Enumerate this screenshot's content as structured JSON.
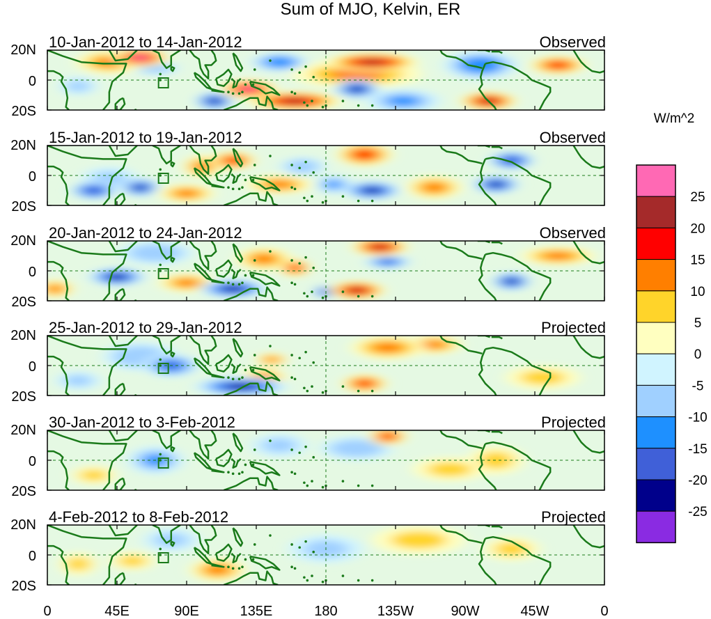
{
  "title": "Sum of MJO, Kelvin, ER",
  "panels": [
    {
      "date_range": "10-Jan-2012 to 14-Jan-2012",
      "status": "Observed"
    },
    {
      "date_range": "15-Jan-2012 to 19-Jan-2012",
      "status": "Observed"
    },
    {
      "date_range": "20-Jan-2012 to 24-Jan-2012",
      "status": "Observed"
    },
    {
      "date_range": "25-Jan-2012 to 29-Jan-2012",
      "status": "Projected"
    },
    {
      "date_range": "30-Jan-2012 to 3-Feb-2012",
      "status": "Projected"
    },
    {
      "date_range": "4-Feb-2012 to 8-Feb-2012",
      "status": "Projected"
    }
  ],
  "lat_labels": [
    "20N",
    "0",
    "20S"
  ],
  "lon_labels": [
    "0",
    "45E",
    "90E",
    "135E",
    "180",
    "135W",
    "90W",
    "45W",
    "0"
  ],
  "colorbar": {
    "units": "W/m^2",
    "tick_labels": [
      "25",
      "20",
      "15",
      "10",
      "5",
      "0",
      "-5",
      "-10",
      "-15",
      "-20",
      "-25"
    ],
    "colors": [
      "#ff69b4",
      "#a52a2a",
      "#ff0000",
      "#ff7f00",
      "#ffd42a",
      "#ffffc0",
      "#d0f4ff",
      "#a0d0ff",
      "#1e90ff",
      "#4060d8",
      "#00008b",
      "#8a2be2"
    ]
  },
  "coast_color": "#1a7a1a",
  "chart_data": {
    "type": "heatmap",
    "title": "Sum of MJO, Kelvin, ER",
    "variable_units": "W/m^2",
    "lat_range": [
      "20S",
      "20N"
    ],
    "lon_range": [
      "0",
      "0"
    ],
    "contour_levels": [
      -25,
      -20,
      -15,
      -10,
      -5,
      0,
      5,
      10,
      15,
      20,
      25
    ],
    "panels": [
      {
        "date_range": "10-Jan-2012 to 14-Jan-2012",
        "status": "Observed",
        "blobs": [
          [
            60,
            15,
            15,
            4,
            26
          ],
          [
            40,
            12,
            18,
            5,
            13
          ],
          [
            210,
            12,
            25,
            4,
            20
          ],
          [
            200,
            4,
            35,
            6,
            10
          ],
          [
            130,
            -6,
            15,
            4,
            26
          ],
          [
            200,
            -6,
            12,
            4,
            -25
          ],
          [
            108,
            -14,
            10,
            4,
            -22
          ],
          [
            150,
            12,
            15,
            4,
            -15
          ],
          [
            280,
            10,
            20,
            6,
            -15
          ],
          [
            330,
            10,
            15,
            4,
            18
          ],
          [
            160,
            -14,
            25,
            4,
            20
          ],
          [
            230,
            -14,
            20,
            5,
            -12
          ],
          [
            285,
            -14,
            15,
            4,
            20
          ],
          [
            70,
            8,
            12,
            3,
            -10
          ],
          [
            20,
            -4,
            10,
            4,
            -8
          ]
        ]
      },
      {
        "date_range": "15-Jan-2012 to 19-Jan-2012",
        "status": "Observed",
        "blobs": [
          [
            60,
            -8,
            10,
            4,
            -22
          ],
          [
            30,
            -10,
            12,
            4,
            -20
          ],
          [
            120,
            10,
            12,
            4,
            18
          ],
          [
            100,
            6,
            10,
            5,
            14
          ],
          [
            150,
            -6,
            18,
            4,
            10
          ],
          [
            210,
            -10,
            15,
            4,
            -25
          ],
          [
            185,
            -6,
            10,
            4,
            -12
          ],
          [
            205,
            14,
            15,
            5,
            16
          ],
          [
            250,
            -8,
            15,
            5,
            14
          ],
          [
            290,
            -6,
            12,
            4,
            -22
          ],
          [
            300,
            10,
            12,
            4,
            -20
          ],
          [
            165,
            6,
            12,
            4,
            -10
          ],
          [
            40,
            -2,
            15,
            5,
            -8
          ],
          [
            90,
            -12,
            15,
            4,
            12
          ]
        ]
      },
      {
        "date_range": "20-Jan-2012 to 24-Jan-2012",
        "status": "Observed",
        "blobs": [
          [
            45,
            -4,
            15,
            4,
            -25
          ],
          [
            120,
            -12,
            18,
            4,
            -22
          ],
          [
            180,
            -14,
            6,
            3,
            -20
          ],
          [
            160,
            2,
            8,
            4,
            18
          ],
          [
            200,
            -13,
            15,
            4,
            24
          ],
          [
            215,
            16,
            15,
            4,
            22
          ],
          [
            220,
            6,
            12,
            3,
            -18
          ],
          [
            300,
            -7,
            10,
            4,
            -22
          ],
          [
            330,
            10,
            20,
            4,
            14
          ],
          [
            90,
            -8,
            15,
            4,
            14
          ],
          [
            5,
            -12,
            10,
            4,
            12
          ],
          [
            140,
            8,
            15,
            5,
            10
          ],
          [
            70,
            12,
            20,
            5,
            -10
          ]
        ]
      },
      {
        "date_range": "25-Jan-2012 to 29-Jan-2012",
        "status": "Projected",
        "blobs": [
          [
            80,
            0,
            15,
            5,
            -18
          ],
          [
            125,
            -14,
            25,
            4,
            -22
          ],
          [
            205,
            -12,
            12,
            4,
            18
          ],
          [
            140,
            -8,
            12,
            4,
            12
          ],
          [
            145,
            4,
            8,
            3,
            10
          ],
          [
            220,
            12,
            20,
            5,
            14
          ],
          [
            250,
            14,
            15,
            4,
            10
          ],
          [
            60,
            6,
            20,
            6,
            -10
          ],
          [
            320,
            -8,
            20,
            5,
            8
          ],
          [
            20,
            -10,
            12,
            4,
            -8
          ]
        ]
      },
      {
        "date_range": "30-Jan-2012 to 3-Feb-2012",
        "status": "Projected",
        "blobs": [
          [
            220,
            16,
            10,
            4,
            18
          ],
          [
            200,
            8,
            20,
            5,
            -10
          ],
          [
            290,
            0,
            15,
            6,
            8
          ],
          [
            70,
            0,
            15,
            6,
            -12
          ],
          [
            30,
            -10,
            12,
            4,
            8
          ],
          [
            150,
            10,
            15,
            5,
            -6
          ],
          [
            260,
            -6,
            20,
            5,
            6
          ]
        ]
      },
      {
        "date_range": "4-Feb-2012 to 8-Feb-2012",
        "status": "Projected",
        "blobs": [
          [
            110,
            -10,
            15,
            5,
            12
          ],
          [
            55,
            -4,
            12,
            4,
            8
          ],
          [
            240,
            10,
            25,
            6,
            6
          ],
          [
            300,
            4,
            15,
            5,
            6
          ],
          [
            180,
            4,
            20,
            6,
            -6
          ],
          [
            80,
            10,
            15,
            5,
            -8
          ],
          [
            20,
            -6,
            10,
            5,
            6
          ]
        ]
      }
    ]
  }
}
